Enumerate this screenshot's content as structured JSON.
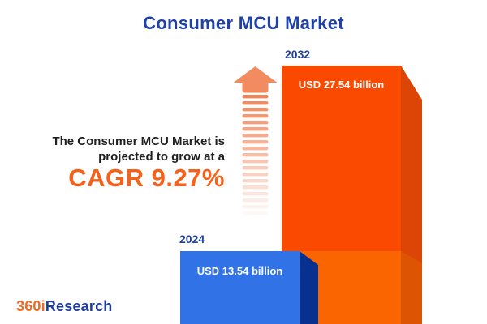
{
  "header": {
    "title": "Consumer MCU Market"
  },
  "annotation": {
    "line1": "The Consumer MCU Market is",
    "line2": "projected to grow at a",
    "cagr": "CAGR 9.27%"
  },
  "bars": [
    {
      "year": "2024",
      "value_label": "USD 13.54 billion",
      "front_color": "#3173E7",
      "side_color": "#08308F"
    },
    {
      "year": "2032",
      "value_label": "USD 27.54 billion",
      "front_color": "#FA4A02",
      "side_color": "#DB4506"
    }
  ],
  "pedestal": {
    "front_color": "#FB6501",
    "side_color": "#DD5402"
  },
  "arrow": {
    "meaning": "growth-up-arrow",
    "head_color": "#F28B5F",
    "stripe_color": "#F07E50"
  },
  "logo": {
    "part1": "360i",
    "part2": "Research",
    "part1_color": "#F26A21",
    "part2_color": "#1E3C9E"
  },
  "colors": {
    "background": "#FFFFFF",
    "title_text": "#1F41A6",
    "year_label_text": "#21419F",
    "annotation_text": "#1F1F1F",
    "cagr_text": "#F4611A",
    "value_text": "#FFFFFF"
  },
  "chart_data": {
    "type": "bar",
    "title": "Consumer MCU Market",
    "orientation": "vertical",
    "style": "3d-infographic",
    "categories": [
      "2024",
      "2032"
    ],
    "values": [
      13.54,
      27.54
    ],
    "unit": "USD billion",
    "value_labels": [
      "USD 13.54 billion",
      "USD 27.54 billion"
    ],
    "cagr_percent": 9.27,
    "annotation_text": "The Consumer MCU Market is projected to grow at a CAGR 9.27%",
    "series": [
      {
        "name": "Consumer MCU Market size",
        "values": [
          13.54,
          27.54
        ]
      }
    ],
    "legend": "none",
    "grid": "off",
    "axes": "none"
  }
}
